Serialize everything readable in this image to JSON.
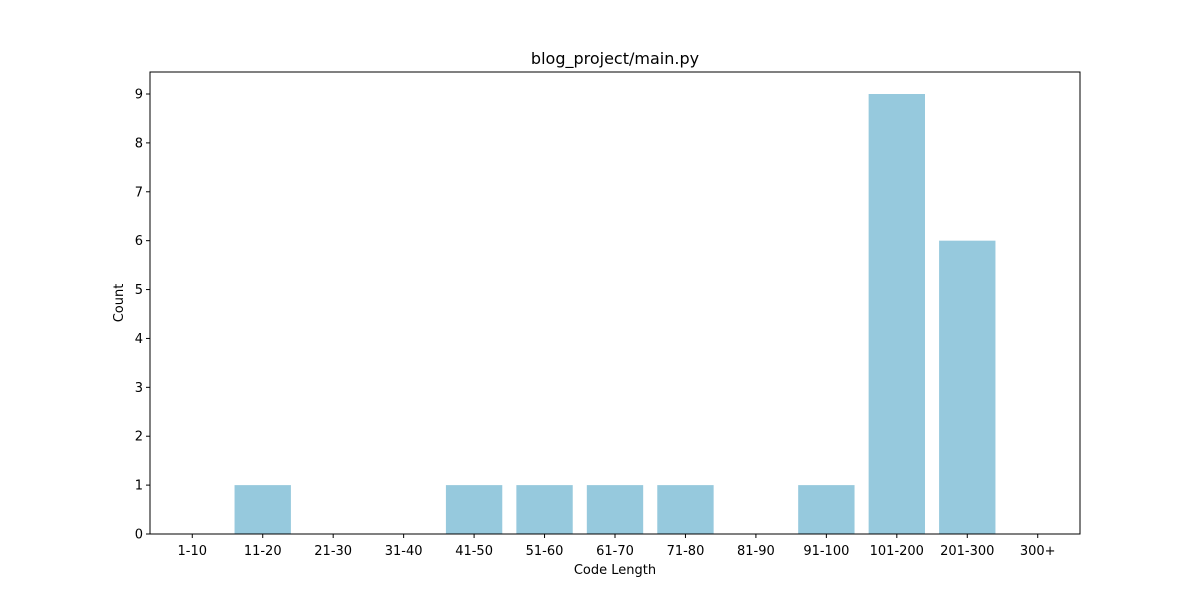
{
  "chart_data": {
    "type": "bar",
    "title": "blog_project/main.py",
    "xlabel": "Code Length",
    "ylabel": "Count",
    "categories": [
      "1-10",
      "11-20",
      "21-30",
      "31-40",
      "41-50",
      "51-60",
      "61-70",
      "71-80",
      "81-90",
      "91-100",
      "101-200",
      "201-300",
      "300+"
    ],
    "values": [
      0,
      1,
      0,
      0,
      1,
      1,
      1,
      1,
      0,
      1,
      9,
      6,
      0
    ],
    "ylim": [
      0,
      9.45
    ],
    "yticks": [
      0,
      1,
      2,
      3,
      4,
      5,
      6,
      7,
      8,
      9
    ],
    "bar_color": "#96c9dd",
    "grid": false,
    "legend": "none"
  }
}
